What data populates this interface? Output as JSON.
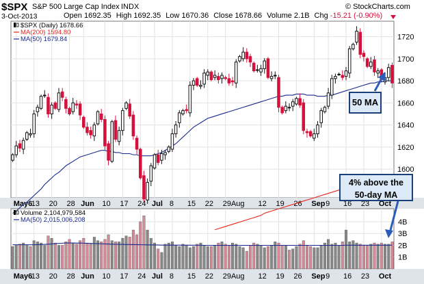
{
  "header": {
    "symbol": "$SPX",
    "name": "S&P 500 Large Cap Index",
    "exchange": "INDX",
    "watermark": "© StockCharts.com",
    "date": "3-Oct-2013",
    "stats": [
      {
        "label": "Open",
        "value": "1692.35"
      },
      {
        "label": "High",
        "value": "1692.35"
      },
      {
        "label": "Low",
        "value": "1670.36"
      },
      {
        "label": "Close",
        "value": "1678.66"
      },
      {
        "label": "Volume",
        "value": "2.1B"
      },
      {
        "label": "Chg",
        "value": "-15.21 (-0.90%)"
      }
    ]
  },
  "colors": {
    "up": "#111111",
    "down": "#d4103c",
    "ma50": "#1a2a8c",
    "ma200": "#e8261c",
    "vol_up": "#888888",
    "vol_down": "#d68a98",
    "grid": "#e2e2e2",
    "callout_bg": "#dce9f6",
    "callout_border": "#1a3f7a"
  },
  "chart_data": [
    {
      "type": "candlestick",
      "legend": [
        {
          "text": "$SPX (Daily) 1678.66",
          "icon": "candle-icon"
        },
        {
          "text": "MA(200) 1594.80",
          "color": "#e8261c"
        },
        {
          "text": "MA(50) 1679.84",
          "color": "#1a2a8c"
        }
      ],
      "y_ticks": [
        1600,
        1620,
        1640,
        1660,
        1680,
        1700,
        1720
      ],
      "ylim": [
        1574,
        1734
      ],
      "x_labels": [
        "May6",
        "13",
        "20",
        "28",
        "Jun",
        "10",
        "17",
        "24",
        "Jul",
        "8",
        "15",
        "22",
        "29Aug",
        "12",
        "19",
        "26",
        "Sep",
        "9",
        "16",
        "23",
        "Oct"
      ],
      "x_label_index": [
        1,
        6,
        11,
        16,
        20,
        26,
        31,
        36,
        40,
        45,
        50,
        55,
        60,
        70,
        75,
        80,
        85,
        89,
        94,
        99,
        104
      ],
      "grid": true,
      "series": {
        "close": [
          1613,
          1621,
          1619,
          1626,
          1633,
          1632,
          1650,
          1656,
          1666,
          1667,
          1650,
          1658,
          1655,
          1669,
          1665,
          1655,
          1650,
          1660,
          1658,
          1649,
          1638,
          1633,
          1631,
          1640,
          1652,
          1645,
          1621,
          1608,
          1643,
          1627,
          1635,
          1653,
          1660,
          1648,
          1630,
          1618,
          1592,
          1573,
          1588,
          1603,
          1613,
          1606,
          1614,
          1615,
          1620,
          1632,
          1640,
          1651,
          1653,
          1653,
          1676,
          1680,
          1676,
          1676,
          1687,
          1688,
          1681,
          1685,
          1681,
          1685,
          1682,
          1678,
          1679,
          1697,
          1702,
          1706,
          1700,
          1697,
          1689,
          1690,
          1691,
          1698,
          1683,
          1684,
          1685,
          1656,
          1651,
          1657,
          1656,
          1661,
          1664,
          1658,
          1635,
          1633,
          1630,
          1632,
          1640,
          1653,
          1656,
          1669,
          1682,
          1684,
          1686,
          1683,
          1689,
          1709,
          1713,
          1725,
          1704,
          1702,
          1693,
          1697,
          1688,
          1689,
          1681,
          1683,
          1692,
          1678
        ],
        "ma50": [
          1560,
          1562,
          1565,
          1568,
          1570,
          1573,
          1576,
          1579,
          1582,
          1586,
          1589,
          1592,
          1595,
          1597,
          1600,
          1603,
          1605,
          1607,
          1609,
          1611,
          1612,
          1613,
          1614,
          1615,
          1616,
          1617,
          1617,
          1616,
          1616,
          1615,
          1615,
          1614,
          1614,
          1614,
          1613,
          1613,
          1612,
          1612,
          1612,
          1612,
          1613,
          1614,
          1615,
          1617,
          1619,
          1621,
          1623,
          1626,
          1629,
          1632,
          1635,
          1638,
          1640,
          1642,
          1644,
          1646,
          1647,
          1648,
          1649,
          1650,
          1651,
          1652,
          1653,
          1654,
          1655,
          1656,
          1657,
          1658,
          1659,
          1660,
          1661,
          1662,
          1663,
          1664,
          1665,
          1666,
          1666,
          1667,
          1667,
          1667,
          1668,
          1668,
          1668,
          1667,
          1667,
          1667,
          1666,
          1666,
          1666,
          1667,
          1667,
          1668,
          1669,
          1670,
          1671,
          1672,
          1673,
          1674,
          1675,
          1676,
          1677,
          1678,
          1678,
          1679,
          1679,
          1680,
          1680,
          1680
        ],
        "ma200": [
          1545,
          1546,
          1547,
          1548,
          1549,
          1550,
          1551,
          1552,
          1553,
          1554,
          1555,
          1556,
          1557,
          1558,
          1560,
          1561,
          1562,
          1563,
          1564,
          1565,
          1566,
          1567,
          1568,
          1569,
          1570,
          1571,
          1572,
          1573,
          1574,
          1575,
          1576,
          1577,
          1578,
          1579,
          1580,
          1581,
          1582,
          1583,
          1584,
          1585,
          1585,
          1586,
          1587,
          1588,
          1589,
          1590,
          1591,
          1592,
          1593,
          1594,
          1595
        ]
      }
    },
    {
      "type": "bar",
      "legend": [
        {
          "text": "Volume 2,104,979,584",
          "icon": "volume-icon"
        },
        {
          "text": "MA(50) 2,015,006,208",
          "color": "#1a2a8c"
        }
      ],
      "y_ticks": [
        {
          "label": "1B",
          "value": 1
        },
        {
          "label": "2B",
          "value": 2
        },
        {
          "label": "3B",
          "value": 3
        },
        {
          "label": "4B",
          "value": 4
        }
      ],
      "ylim": [
        0,
        5.1
      ],
      "values": [
        1.9,
        2.0,
        2.1,
        2.2,
        2.0,
        1.9,
        2.4,
        2.3,
        2.2,
        2.0,
        2.8,
        2.6,
        2.2,
        2.0,
        2.0,
        2.3,
        2.5,
        2.2,
        2.1,
        2.4,
        2.6,
        2.2,
        2.1,
        2.7,
        2.4,
        2.3,
        2.5,
        2.9,
        2.4,
        2.3,
        2.3,
        2.6,
        2.8,
        2.7,
        3.3,
        2.9,
        4.0,
        4.5,
        3.3,
        2.6,
        2.2,
        1.7,
        1.4,
        2.1,
        2.2,
        2.3,
        2.0,
        1.9,
        2.1,
        2.0,
        1.8,
        1.9,
        2.1,
        2.2,
        2.0,
        1.9,
        1.9,
        2.0,
        2.2,
        2.3,
        2.1,
        2.0,
        2.2,
        2.1,
        1.9,
        1.8,
        1.5,
        2.0,
        2.2,
        2.1,
        2.0,
        1.8,
        1.9,
        2.0,
        2.3,
        2.2,
        2.0,
        2.0,
        1.6,
        1.7,
        1.9,
        2.1,
        2.4,
        2.0,
        1.9,
        1.8,
        1.8,
        2.0,
        2.2,
        2.5,
        2.1,
        2.2,
        2.0,
        2.3,
        3.3,
        2.3,
        2.4,
        2.2,
        2.1,
        2.0,
        2.0,
        2.1,
        2.2,
        2.1,
        2.2,
        2.1,
        2.1,
        2.3
      ],
      "ma50": [
        2.05,
        2.05,
        2.05,
        2.05,
        2.05,
        2.05,
        2.05,
        2.06,
        2.07,
        2.08,
        2.1,
        2.12,
        2.14,
        2.16,
        2.18,
        2.2,
        2.2,
        2.2,
        2.19,
        2.19,
        2.18,
        2.17,
        2.16,
        2.15,
        2.14,
        2.13,
        2.12,
        2.11,
        2.1,
        2.09,
        2.08,
        2.08,
        2.07,
        2.07,
        2.06,
        2.06,
        2.05,
        2.05,
        2.04,
        2.04,
        2.03,
        2.03,
        2.02,
        2.02,
        2.02,
        2.02,
        2.02,
        2.02,
        2.02,
        2.02,
        2.01,
        2.01,
        2.01,
        2.01,
        2.0,
        2.0,
        2.0,
        2.0,
        2.0,
        2.0,
        2.0,
        2.0,
        2.0,
        2.0,
        2.0,
        2.0,
        2.0,
        2.0,
        2.0,
        2.0,
        2.0,
        2.0,
        2.0,
        2.0,
        2.0,
        2.0,
        2.0,
        2.0,
        2.0,
        2.0,
        2.0,
        2.0,
        2.0,
        2.0,
        2.0,
        2.0,
        2.0,
        2.0,
        2.0,
        2.0,
        2.0,
        2.0,
        2.0,
        2.0,
        2.01,
        2.01,
        2.01,
        2.01,
        2.01,
        2.01,
        2.01,
        2.01,
        2.01,
        2.01,
        2.01,
        2.01,
        2.01,
        2.02
      ]
    }
  ],
  "annotations": [
    {
      "text": "50 MA"
    },
    {
      "line1": "4% above the",
      "line2": "50-day MA"
    }
  ]
}
